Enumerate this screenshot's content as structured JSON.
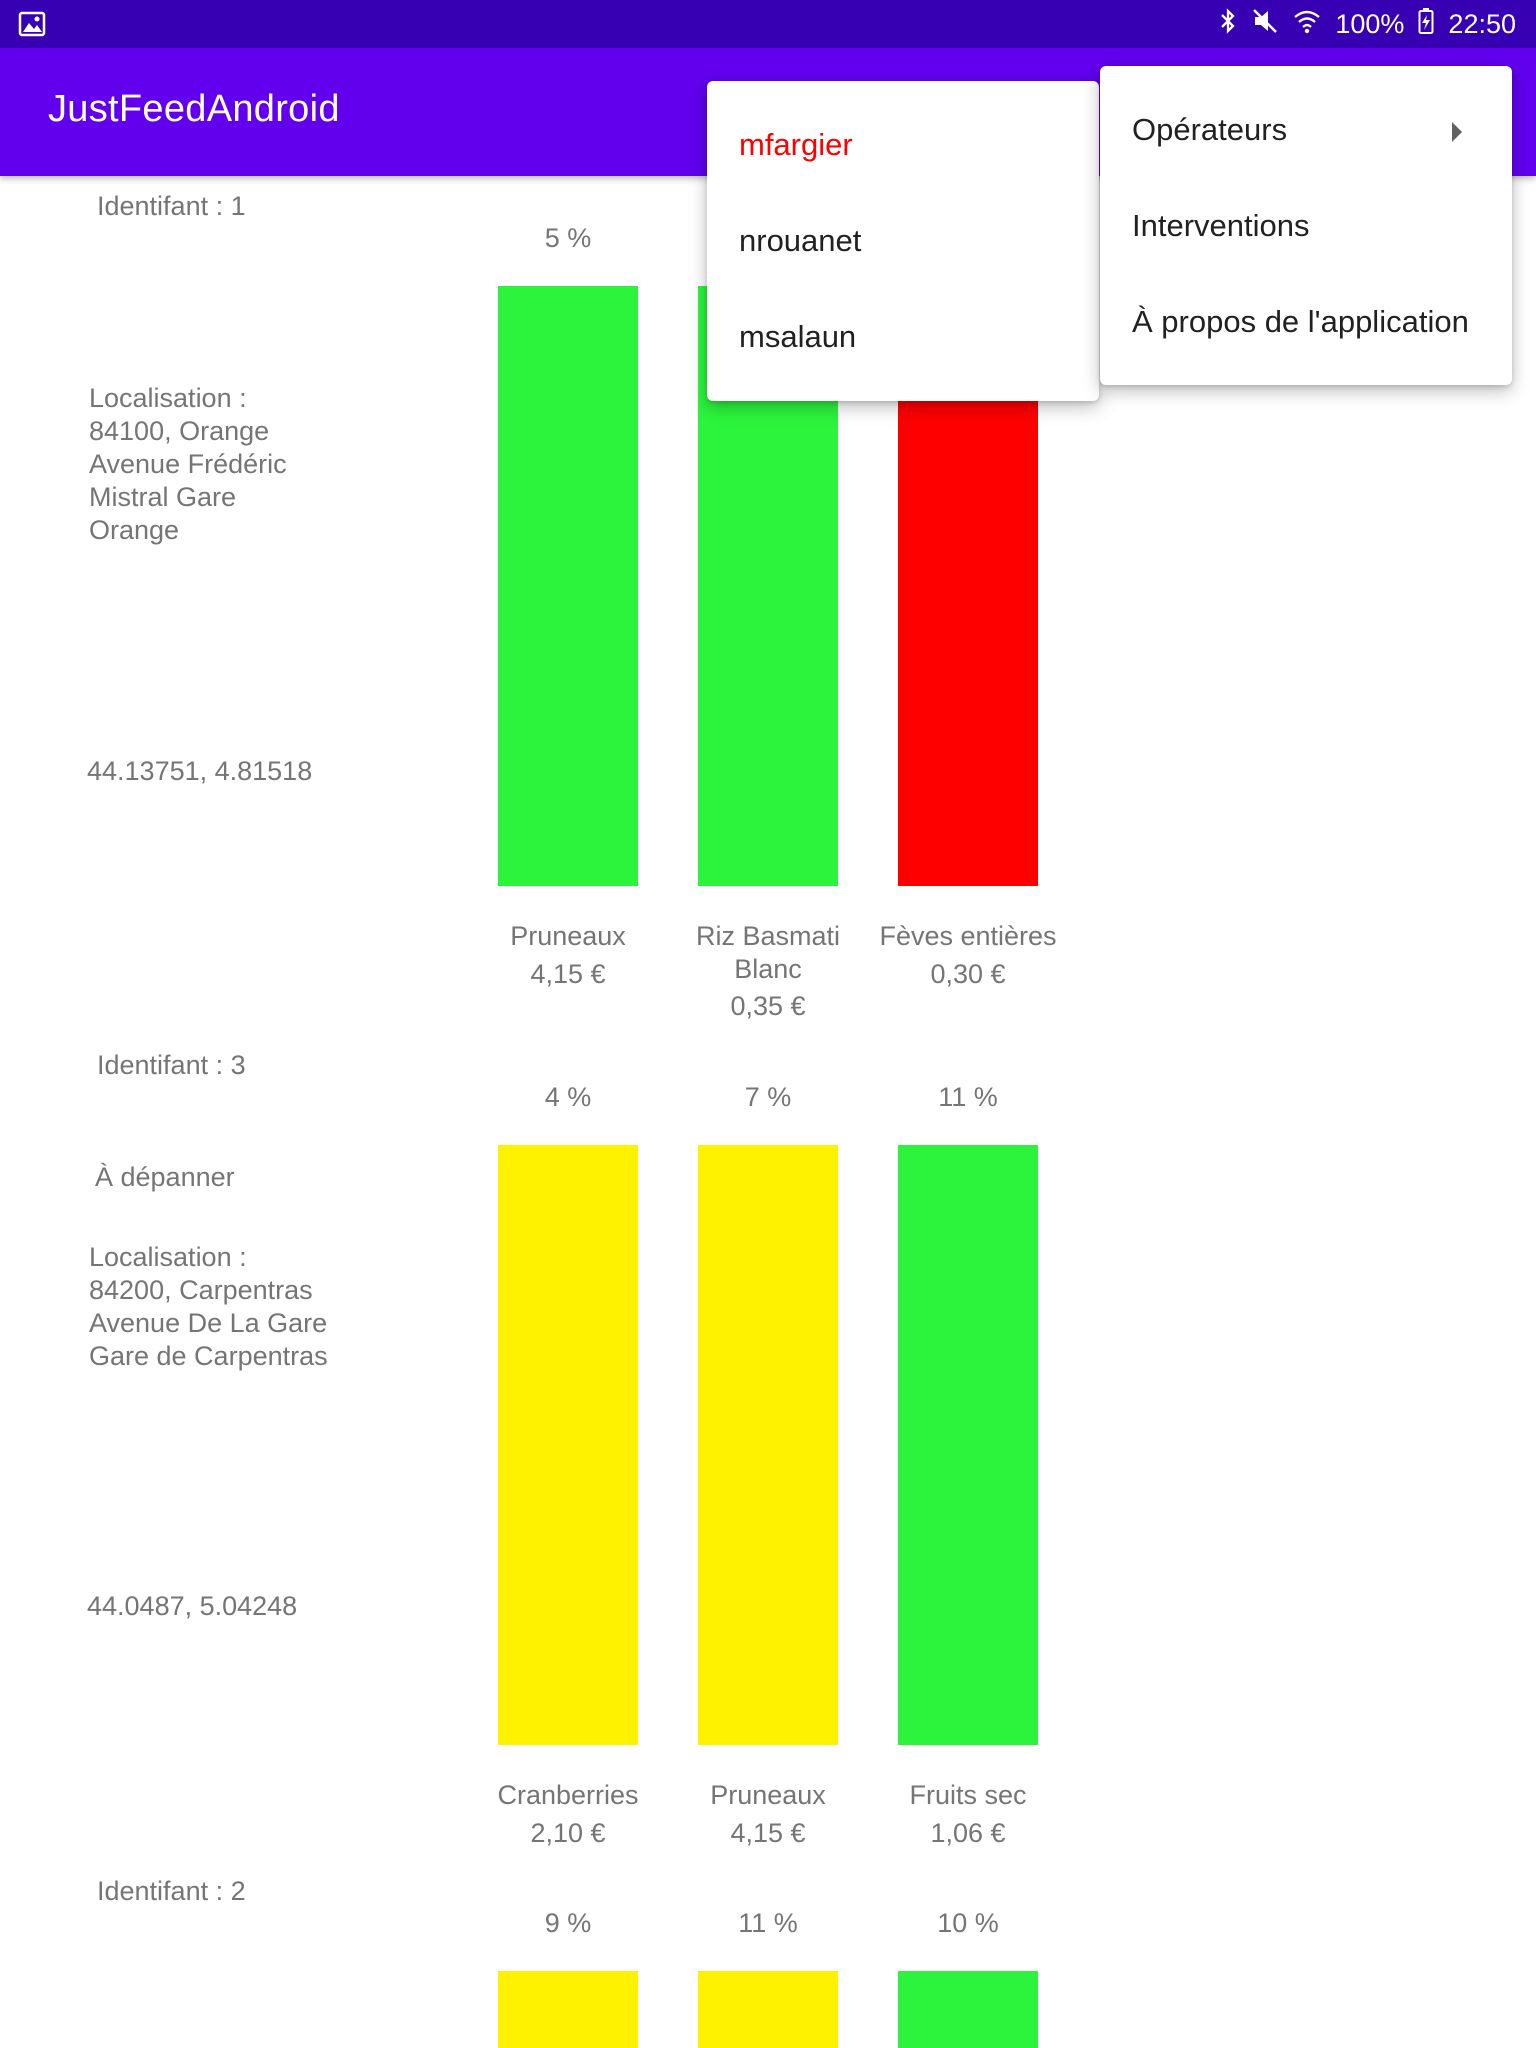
{
  "status_bar": {
    "battery": "100%",
    "time": "22:50",
    "icons": [
      "image-icon",
      "bluetooth-icon",
      "mute-icon",
      "wifi-icon",
      "battery-charging-icon"
    ]
  },
  "app_bar": {
    "title": "JustFeedAndroid"
  },
  "colors": {
    "green": "#2cf43c",
    "red": "#ff0000",
    "yellow": "#fff200",
    "primary": "#6200ee",
    "status": "#3700b3",
    "selected_user": "#ff0000"
  },
  "machines": [
    {
      "id_label": "Identifant : 1",
      "status": "",
      "location": "Localisation :\n84100, Orange\nAvenue Frédéric\nMistral Gare\nOrange",
      "coords": "44.13751, 4.81518",
      "products": [
        {
          "percent": "5 %",
          "name": "Pruneaux",
          "price": "4,15 €",
          "fill": "green"
        },
        {
          "percent": "",
          "name": "Riz Basmati\nBlanc",
          "price": "0,35 €",
          "fill": "green"
        },
        {
          "percent": "",
          "name": "Fèves entières",
          "price": "0,30 €",
          "fill": "red"
        }
      ]
    },
    {
      "id_label": "Identifant : 3",
      "status": "À dépanner",
      "location": "Localisation :\n84200, Carpentras\nAvenue De La Gare\nGare de Carpentras",
      "coords": "44.0487, 5.04248",
      "products": [
        {
          "percent": "4 %",
          "name": "Cranberries",
          "price": "2,10 €",
          "fill": "yellow"
        },
        {
          "percent": "7 %",
          "name": "Pruneaux",
          "price": "4,15 €",
          "fill": "yellow"
        },
        {
          "percent": "11 %",
          "name": "Fruits sec",
          "price": "1,06 €",
          "fill": "green"
        }
      ]
    },
    {
      "id_label": "Identifant : 2",
      "products": [
        {
          "percent": "9 %",
          "fill": "yellow"
        },
        {
          "percent": "11 %",
          "fill": "yellow"
        },
        {
          "percent": "10 %",
          "fill": "green"
        }
      ]
    }
  ],
  "users_menu": {
    "items": [
      "mfargier",
      "nrouanet",
      "msalaun"
    ],
    "selected": "mfargier"
  },
  "overflow_menu": {
    "items": [
      "Opérateurs",
      "Interventions",
      "À propos de l'application"
    ]
  }
}
